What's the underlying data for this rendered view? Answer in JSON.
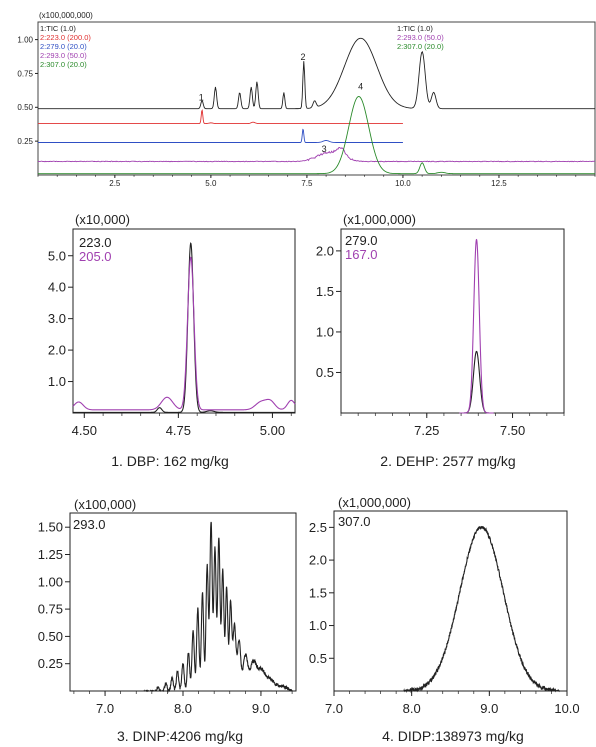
{
  "chart_data": [
    {
      "type": "line",
      "id": "tic",
      "multiplier": "(x100,000,000)",
      "x_ticks": [
        "2.5",
        "5.0",
        "7.5",
        "10.0",
        "12.5"
      ],
      "x_tick_values": [
        2.5,
        5.0,
        7.5,
        10.0,
        12.5
      ],
      "y_ticks": [
        "1.00",
        "0.75",
        "0.50",
        "0.25"
      ],
      "y_tick_values": [
        1.0,
        0.75,
        0.5,
        0.25
      ],
      "xlim": [
        0.5,
        15.0
      ],
      "ylim": [
        0,
        1.13
      ],
      "legend_left": [
        {
          "text": "1:TIC (1.0)",
          "color": "#222222"
        },
        {
          "text": "2:223.0 (200.0)",
          "color": "#e03030"
        },
        {
          "text": "2:279.0 (20.0)",
          "color": "#2f4fc4"
        },
        {
          "text": "2:293.0 (50.0)",
          "color": "#a040b0"
        },
        {
          "text": "2:307.0 (20.0)",
          "color": "#2a8a2a"
        }
      ],
      "legend_right": [
        {
          "text": "1:TIC (1.0)",
          "color": "#222222"
        },
        {
          "text": "2:293.0 (50.0)",
          "color": "#a040b0"
        },
        {
          "text": "2:307.0 (20.0)",
          "color": "#2a8a2a"
        }
      ],
      "annotations": [
        {
          "text": "1",
          "x": 4.75,
          "y": 0.55
        },
        {
          "text": "2",
          "x": 7.4,
          "y": 0.85
        },
        {
          "text": "3",
          "x": 7.95,
          "y": 0.17
        },
        {
          "text": "4",
          "x": 8.9,
          "y": 0.63
        }
      ],
      "series": [
        {
          "color": "#222222",
          "baseline": 0.49,
          "x_range": [
            0.5,
            15.0
          ],
          "end_x": 15.0,
          "noise": 0.0,
          "peaks": [
            [
              4.77,
              0.06,
              0.03
            ],
            [
              5.12,
              0.16,
              0.03
            ],
            [
              5.75,
              0.12,
              0.03
            ],
            [
              6.05,
              0.16,
              0.03
            ],
            [
              6.2,
              0.2,
              0.03
            ],
            [
              6.9,
              0.12,
              0.025
            ],
            [
              7.42,
              0.35,
              0.025
            ],
            [
              7.7,
              0.05,
              0.04
            ],
            [
              8.9,
              0.52,
              0.42
            ],
            [
              10.5,
              0.42,
              0.08
            ],
            [
              10.8,
              0.12,
              0.06
            ]
          ]
        },
        {
          "color": "#e03030",
          "baseline": 0.38,
          "x_range": [
            0.5,
            10.0
          ],
          "end_x": 10.0,
          "noise": 0.0,
          "peaks": [
            [
              4.77,
              0.1,
              0.02
            ],
            [
              5.0,
              0.005,
              0.05
            ],
            [
              6.1,
              0.01,
              0.05
            ]
          ]
        },
        {
          "color": "#2f4fc4",
          "baseline": 0.24,
          "x_range": [
            0.5,
            10.0
          ],
          "end_x": 10.0,
          "noise": 0.0,
          "peaks": [
            [
              7.4,
              0.1,
              0.02
            ],
            [
              8.0,
              0.015,
              0.08
            ]
          ]
        },
        {
          "color": "#a040b0",
          "baseline": 0.1,
          "x_range": [
            0.5,
            15.0
          ],
          "end_x": 15.0,
          "noise": 0.008,
          "peaks": [
            [
              8.1,
              0.07,
              0.3
            ],
            [
              8.4,
              0.06,
              0.1
            ]
          ]
        },
        {
          "color": "#2a8a2a",
          "baseline": 0.01,
          "x_range": [
            0.5,
            15.0
          ],
          "end_x": 15.0,
          "noise": 0.0,
          "peaks": [
            [
              8.85,
              0.57,
              0.26
            ],
            [
              10.5,
              0.08,
              0.06
            ],
            [
              11.0,
              0.01,
              0.1
            ]
          ]
        }
      ]
    },
    {
      "type": "line",
      "id": "dbp",
      "multiplier": "(x10,000)",
      "caption": "1. DBP: 162 mg/kg",
      "x_ticks": [
        "4.50",
        "4.75",
        "5.00"
      ],
      "x_tick_values": [
        4.5,
        4.75,
        5.0
      ],
      "y_ticks": [
        "5.0",
        "4.0",
        "3.0",
        "2.0",
        "1.0"
      ],
      "y_tick_values": [
        5.0,
        4.0,
        3.0,
        2.0,
        1.0
      ],
      "xlim": [
        4.47,
        5.06
      ],
      "ylim": [
        0,
        5.85
      ],
      "legend": [
        {
          "text": "223.0",
          "color": "#222222"
        },
        {
          "text": "205.0",
          "color": "#a040b0"
        }
      ],
      "series": [
        {
          "name": "223.0",
          "color": "#222222",
          "baseline": 0.02,
          "x_range": [
            4.47,
            5.06
          ],
          "end_x": 5.06,
          "noise": 0.0,
          "peaks": [
            [
              4.783,
              5.38,
              0.0075
            ],
            [
              4.7,
              0.15,
              0.006
            ],
            [
              4.835,
              0.05,
              0.01
            ]
          ]
        },
        {
          "name": "205.0",
          "color": "#a040b0",
          "baseline": 0.1,
          "x_range": [
            4.47,
            5.06
          ],
          "end_x": 5.06,
          "noise": 0.0,
          "peaks": [
            [
              4.783,
              4.85,
              0.0085
            ],
            [
              4.485,
              0.25,
              0.012
            ],
            [
              4.72,
              0.4,
              0.015
            ],
            [
              4.97,
              0.25,
              0.015
            ],
            [
              4.995,
              0.25,
              0.012
            ],
            [
              5.05,
              0.3,
              0.01
            ]
          ]
        }
      ]
    },
    {
      "type": "line",
      "id": "dehp",
      "multiplier": "(x1,000,000)",
      "caption": "2. DEHP: 2577 mg/kg",
      "x_ticks": [
        "7.25",
        "7.50"
      ],
      "x_tick_values": [
        7.25,
        7.5
      ],
      "y_ticks": [
        "2.0",
        "1.5",
        "1.0",
        "0.5"
      ],
      "y_tick_values": [
        2.0,
        1.5,
        1.0,
        0.5
      ],
      "xlim": [
        7.0,
        7.65
      ],
      "ylim": [
        0,
        2.27
      ],
      "legend": [
        {
          "text": "279.0",
          "color": "#222222"
        },
        {
          "text": "167.0",
          "color": "#a040b0"
        }
      ],
      "series": [
        {
          "name": "279.0",
          "color": "#222222",
          "baseline": 0.0,
          "x_range": [
            7.345,
            7.445
          ],
          "end_x": 7.445,
          "noise": 0.0,
          "peaks": [
            [
              7.395,
              0.76,
              0.009
            ]
          ]
        },
        {
          "name": "167.0",
          "color": "#a040b0",
          "baseline": 0.0,
          "x_range": [
            7.345,
            7.445
          ],
          "end_x": 7.445,
          "noise": 0.0,
          "peaks": [
            [
              7.395,
              2.14,
              0.008
            ]
          ]
        }
      ]
    },
    {
      "type": "line",
      "id": "dinp",
      "multiplier": "(x100,000)",
      "caption": "3. DINP:4206 mg/kg",
      "x_ticks": [
        "7.0",
        "8.0",
        "9.0"
      ],
      "x_tick_values": [
        7.0,
        8.0,
        9.0
      ],
      "y_ticks": [
        "1.50",
        "1.25",
        "1.00",
        "0.75",
        "0.50",
        "0.25"
      ],
      "y_tick_values": [
        1.5,
        1.25,
        1.0,
        0.75,
        0.5,
        0.25
      ],
      "xlim": [
        6.55,
        9.45
      ],
      "ylim": [
        0,
        1.63
      ],
      "legend": [
        {
          "text": "293.0",
          "color": "#222222"
        }
      ],
      "series": [
        {
          "name": "293.0",
          "color": "#222222",
          "baseline": 0.0,
          "x_range": [
            7.5,
            9.4
          ],
          "end_x": 9.4,
          "noise": 0.015,
          "peaks": [
            [
              7.68,
              0.04,
              0.015
            ],
            [
              7.78,
              0.07,
              0.015
            ],
            [
              7.86,
              0.12,
              0.015
            ],
            [
              7.93,
              0.18,
              0.015
            ],
            [
              8.0,
              0.25,
              0.015
            ],
            [
              8.07,
              0.35,
              0.015
            ],
            [
              8.13,
              0.55,
              0.015
            ],
            [
              8.19,
              0.75,
              0.015
            ],
            [
              8.25,
              0.9,
              0.015
            ],
            [
              8.31,
              1.15,
              0.015
            ],
            [
              8.36,
              1.55,
              0.015
            ],
            [
              8.41,
              1.3,
              0.015
            ],
            [
              8.46,
              1.4,
              0.015
            ],
            [
              8.51,
              1.1,
              0.015
            ],
            [
              8.56,
              0.95,
              0.015
            ],
            [
              8.61,
              0.8,
              0.015
            ],
            [
              8.66,
              0.6,
              0.02
            ],
            [
              8.72,
              0.45,
              0.02
            ],
            [
              8.8,
              0.32,
              0.03
            ],
            [
              8.9,
              0.25,
              0.04
            ],
            [
              9.0,
              0.18,
              0.05
            ],
            [
              9.12,
              0.1,
              0.06
            ],
            [
              9.28,
              0.04,
              0.06
            ]
          ]
        }
      ]
    },
    {
      "type": "line",
      "id": "didp",
      "multiplier": "(x1,000,000)",
      "caption": "4. DIDP:138973 mg/kg",
      "x_ticks": [
        "7.0",
        "8.0",
        "9.0",
        "10.0"
      ],
      "x_tick_values": [
        7.0,
        8.0,
        9.0,
        10.0
      ],
      "y_ticks": [
        "2.5",
        "2.0",
        "1.5",
        "1.0",
        "0.5"
      ],
      "y_tick_values": [
        2.5,
        2.0,
        1.5,
        1.0,
        0.5
      ],
      "xlim": [
        7.0,
        10.0
      ],
      "ylim": [
        0,
        2.75
      ],
      "legend": [
        {
          "text": "307.0",
          "color": "#222222"
        }
      ],
      "series": [
        {
          "name": "307.0",
          "color": "#222222",
          "baseline": 0.0,
          "x_range": [
            7.9,
            9.9
          ],
          "end_x": 9.9,
          "noise": 0.03,
          "peaks": [
            [
              8.9,
              2.5,
              0.28
            ]
          ]
        }
      ]
    }
  ]
}
